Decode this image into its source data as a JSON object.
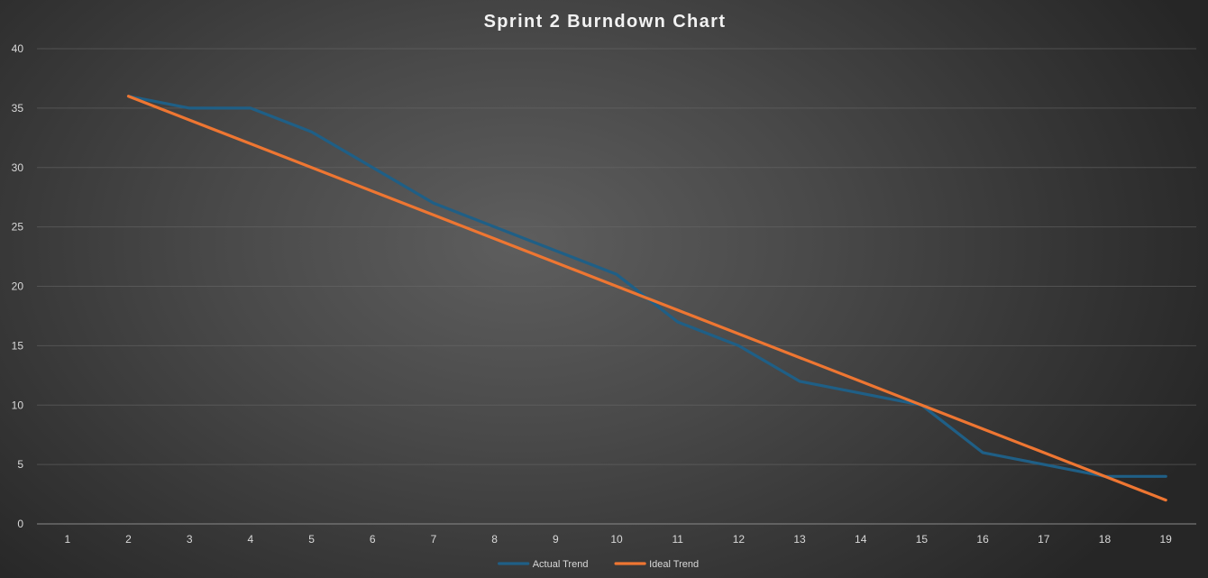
{
  "chart_data": {
    "type": "line",
    "title": "Sprint 2 Burndown Chart",
    "xlabel": "",
    "ylabel": "",
    "categories": [
      1,
      2,
      3,
      4,
      5,
      6,
      7,
      8,
      9,
      10,
      11,
      12,
      13,
      14,
      15,
      16,
      17,
      18,
      19
    ],
    "ylim": [
      0,
      40
    ],
    "yticks": [
      0,
      5,
      10,
      15,
      20,
      25,
      30,
      35,
      40
    ],
    "grid": true,
    "legend_position": "bottom",
    "series": [
      {
        "name": "Actual Trend",
        "color": "#1f5f86",
        "x": [
          2,
          3,
          4,
          5,
          6,
          7,
          8,
          9,
          10,
          11,
          12,
          13,
          14,
          15,
          16,
          17,
          18,
          19
        ],
        "values": [
          36,
          35,
          35,
          33,
          30,
          27,
          25,
          23,
          21,
          17,
          15,
          12,
          11,
          10,
          6,
          5,
          4,
          4
        ]
      },
      {
        "name": "Ideal Trend",
        "color": "#ee7632",
        "x": [
          2,
          3,
          4,
          5,
          6,
          7,
          8,
          9,
          10,
          11,
          12,
          13,
          14,
          15,
          16,
          17,
          18,
          19
        ],
        "values": [
          36,
          34,
          32,
          30,
          28,
          26,
          24,
          22,
          20,
          18,
          16,
          14,
          12,
          10,
          8,
          6,
          4,
          2
        ]
      }
    ]
  }
}
